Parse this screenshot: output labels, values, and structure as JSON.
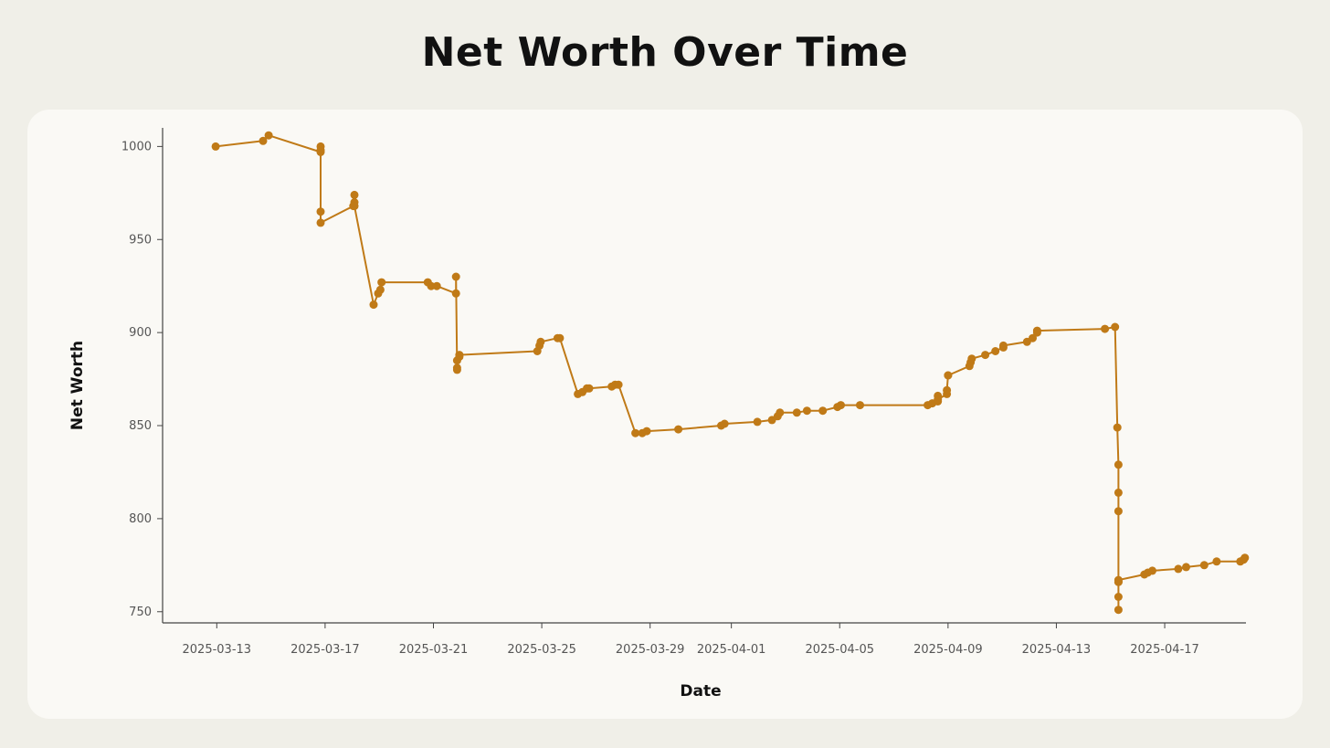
{
  "chart_data": {
    "type": "line",
    "title": "Net Worth Over Time",
    "xlabel": "Date",
    "ylabel": "Net Worth",
    "xlim": [
      "2025-03-11",
      "2025-04-20"
    ],
    "ylim": [
      744,
      1010
    ],
    "y_ticks": [
      750,
      800,
      850,
      900,
      950,
      1000
    ],
    "x_ticks": [
      "2025-03-13",
      "2025-03-17",
      "2025-03-21",
      "2025-03-25",
      "2025-03-29",
      "2025-04-01",
      "2025-04-05",
      "2025-04-09",
      "2025-04-13",
      "2025-04-17"
    ],
    "grid": false,
    "color": "#c07a17",
    "series": [
      {
        "x": [
          "2025-03-12 23:00",
          "2025-03-14 17:00",
          "2025-03-14 22:00",
          "2025-03-16 20:00",
          "2025-03-16 20:00",
          "2025-03-16 20:00",
          "2025-03-16 20:00",
          "2025-03-16 20:00",
          "2025-03-18 01:00",
          "2025-03-18 02:00",
          "2025-03-18 02:00",
          "2025-03-18 02:00",
          "2025-03-18 19:00",
          "2025-03-18 23:00",
          "2025-03-19 01:00",
          "2025-03-19 02:00",
          "2025-03-20 19:00",
          "2025-03-20 22:00",
          "2025-03-21 03:00",
          "2025-03-21 20:00",
          "2025-03-21 20:00",
          "2025-03-21 21:00",
          "2025-03-21 21:00",
          "2025-03-21 21:00",
          "2025-03-21 23:00",
          "2025-03-21 23:00",
          "2025-03-24 20:00",
          "2025-03-24 22:00",
          "2025-03-24 23:00",
          "2025-03-25 14:00",
          "2025-03-25 16:00",
          "2025-03-26 08:00",
          "2025-03-26 12:00",
          "2025-03-26 16:00",
          "2025-03-26 18:00",
          "2025-03-27 14:00",
          "2025-03-27 17:00",
          "2025-03-27 20:00",
          "2025-03-28 11:00",
          "2025-03-28 17:00",
          "2025-03-28 21:00",
          "2025-03-30 01:00",
          "2025-03-31 15:00",
          "2025-03-31 18:00",
          "2025-04-01 23:00",
          "2025-04-02 12:00",
          "2025-04-02 17:00",
          "2025-04-02 19:00",
          "2025-04-03 10:00",
          "2025-04-03 19:00",
          "2025-04-04 09:00",
          "2025-04-04 22:00",
          "2025-04-05 01:00",
          "2025-04-05 18:00",
          "2025-04-08 06:00",
          "2025-04-08 10:00",
          "2025-04-08 15:00",
          "2025-04-08 15:00",
          "2025-04-08 15:00",
          "2025-04-08 23:00",
          "2025-04-08 23:00",
          "2025-04-09 00:00",
          "2025-04-09 00:00",
          "2025-04-09 19:00",
          "2025-04-09 20:00",
          "2025-04-09 21:00",
          "2025-04-10 09:00",
          "2025-04-10 18:00",
          "2025-04-11 01:00",
          "2025-04-11 01:00",
          "2025-04-11 22:00",
          "2025-04-12 03:00",
          "2025-04-12 07:00",
          "2025-04-12 07:00",
          "2025-04-14 19:00",
          "2025-04-15 04:00",
          "2025-04-15 06:00",
          "2025-04-15 07:00",
          "2025-04-15 07:00",
          "2025-04-15 07:00",
          "2025-04-15 07:00",
          "2025-04-15 07:00",
          "2025-04-15 07:00",
          "2025-04-15 07:00",
          "2025-04-15 07:00",
          "2025-04-16 06:00",
          "2025-04-16 09:00",
          "2025-04-16 13:00",
          "2025-04-17 12:00",
          "2025-04-17 19:00",
          "2025-04-18 11:00",
          "2025-04-18 22:00",
          "2025-04-19 19:00",
          "2025-04-19 22:00",
          "2025-04-19 23:00"
        ],
        "y": [
          1000,
          1003,
          1006,
          997,
          1000,
          998,
          965,
          959,
          968,
          970,
          974,
          968,
          915,
          921,
          923,
          927,
          927,
          925,
          925,
          921,
          930,
          880,
          881,
          885,
          887,
          888,
          890,
          893,
          895,
          897,
          897,
          867,
          868,
          870,
          870,
          871,
          872,
          872,
          846,
          846,
          847,
          848,
          850,
          851,
          852,
          853,
          855,
          857,
          857,
          858,
          858,
          860,
          861,
          861,
          861,
          862,
          863,
          866,
          864,
          867,
          869,
          877,
          877,
          882,
          884,
          886,
          888,
          890,
          892,
          893,
          895,
          897,
          900,
          901,
          902,
          903,
          849,
          829,
          814,
          804,
          766,
          758,
          751,
          766,
          767,
          770,
          771,
          772,
          773,
          774,
          775,
          777,
          777,
          778,
          779
        ]
      }
    ]
  }
}
